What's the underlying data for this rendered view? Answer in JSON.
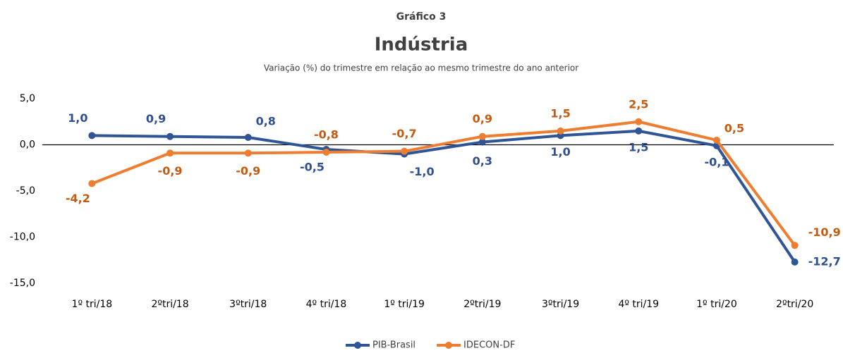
{
  "chart_data": {
    "type": "line",
    "title": "Gráfico 3",
    "subtitle": "Indústria",
    "caption": "Variação (%) do trimestre em relação ao mesmo trimestre do ano anterior",
    "categories": [
      "1º tri/18",
      "2ºtri/18",
      "3ºtri/18",
      "4º tri/18",
      "1º tri/19",
      "2ºtri/19",
      "3ºtri/19",
      "4º tri/19",
      "1º tri/20",
      "2ºtri/20"
    ],
    "series": [
      {
        "name": "PIB-Brasil",
        "color": "#2f5597",
        "values": [
          1.0,
          0.9,
          0.8,
          -0.5,
          -1.0,
          0.3,
          1.0,
          1.5,
          -0.1,
          -12.7
        ],
        "value_labels": [
          "1,0",
          "0,9",
          "0,8",
          "-0,5",
          "-1,0",
          "0,3",
          "1,0",
          "1,5",
          "-0,1",
          "-12,7"
        ]
      },
      {
        "name": "IDECON-DF",
        "color": "#ed7d31",
        "values": [
          -4.2,
          -0.9,
          -0.9,
          -0.8,
          -0.7,
          0.9,
          1.5,
          2.5,
          0.5,
          -10.9
        ],
        "value_labels": [
          "-4,2",
          "-0,9",
          "-0,9",
          "-0,8",
          "-0,7",
          "0,9",
          "1,5",
          "2,5",
          "0,5",
          "-10,9"
        ]
      }
    ],
    "ylim": [
      -15,
      5
    ],
    "yticks": [
      {
        "value": 5,
        "label": "5,0"
      },
      {
        "value": 0,
        "label": "0,0"
      },
      {
        "value": -5,
        "label": "-5,0"
      },
      {
        "value": -10,
        "label": "-10,0"
      },
      {
        "value": -15,
        "label": "-15,0"
      }
    ],
    "grid": false,
    "legend": "bottom"
  }
}
